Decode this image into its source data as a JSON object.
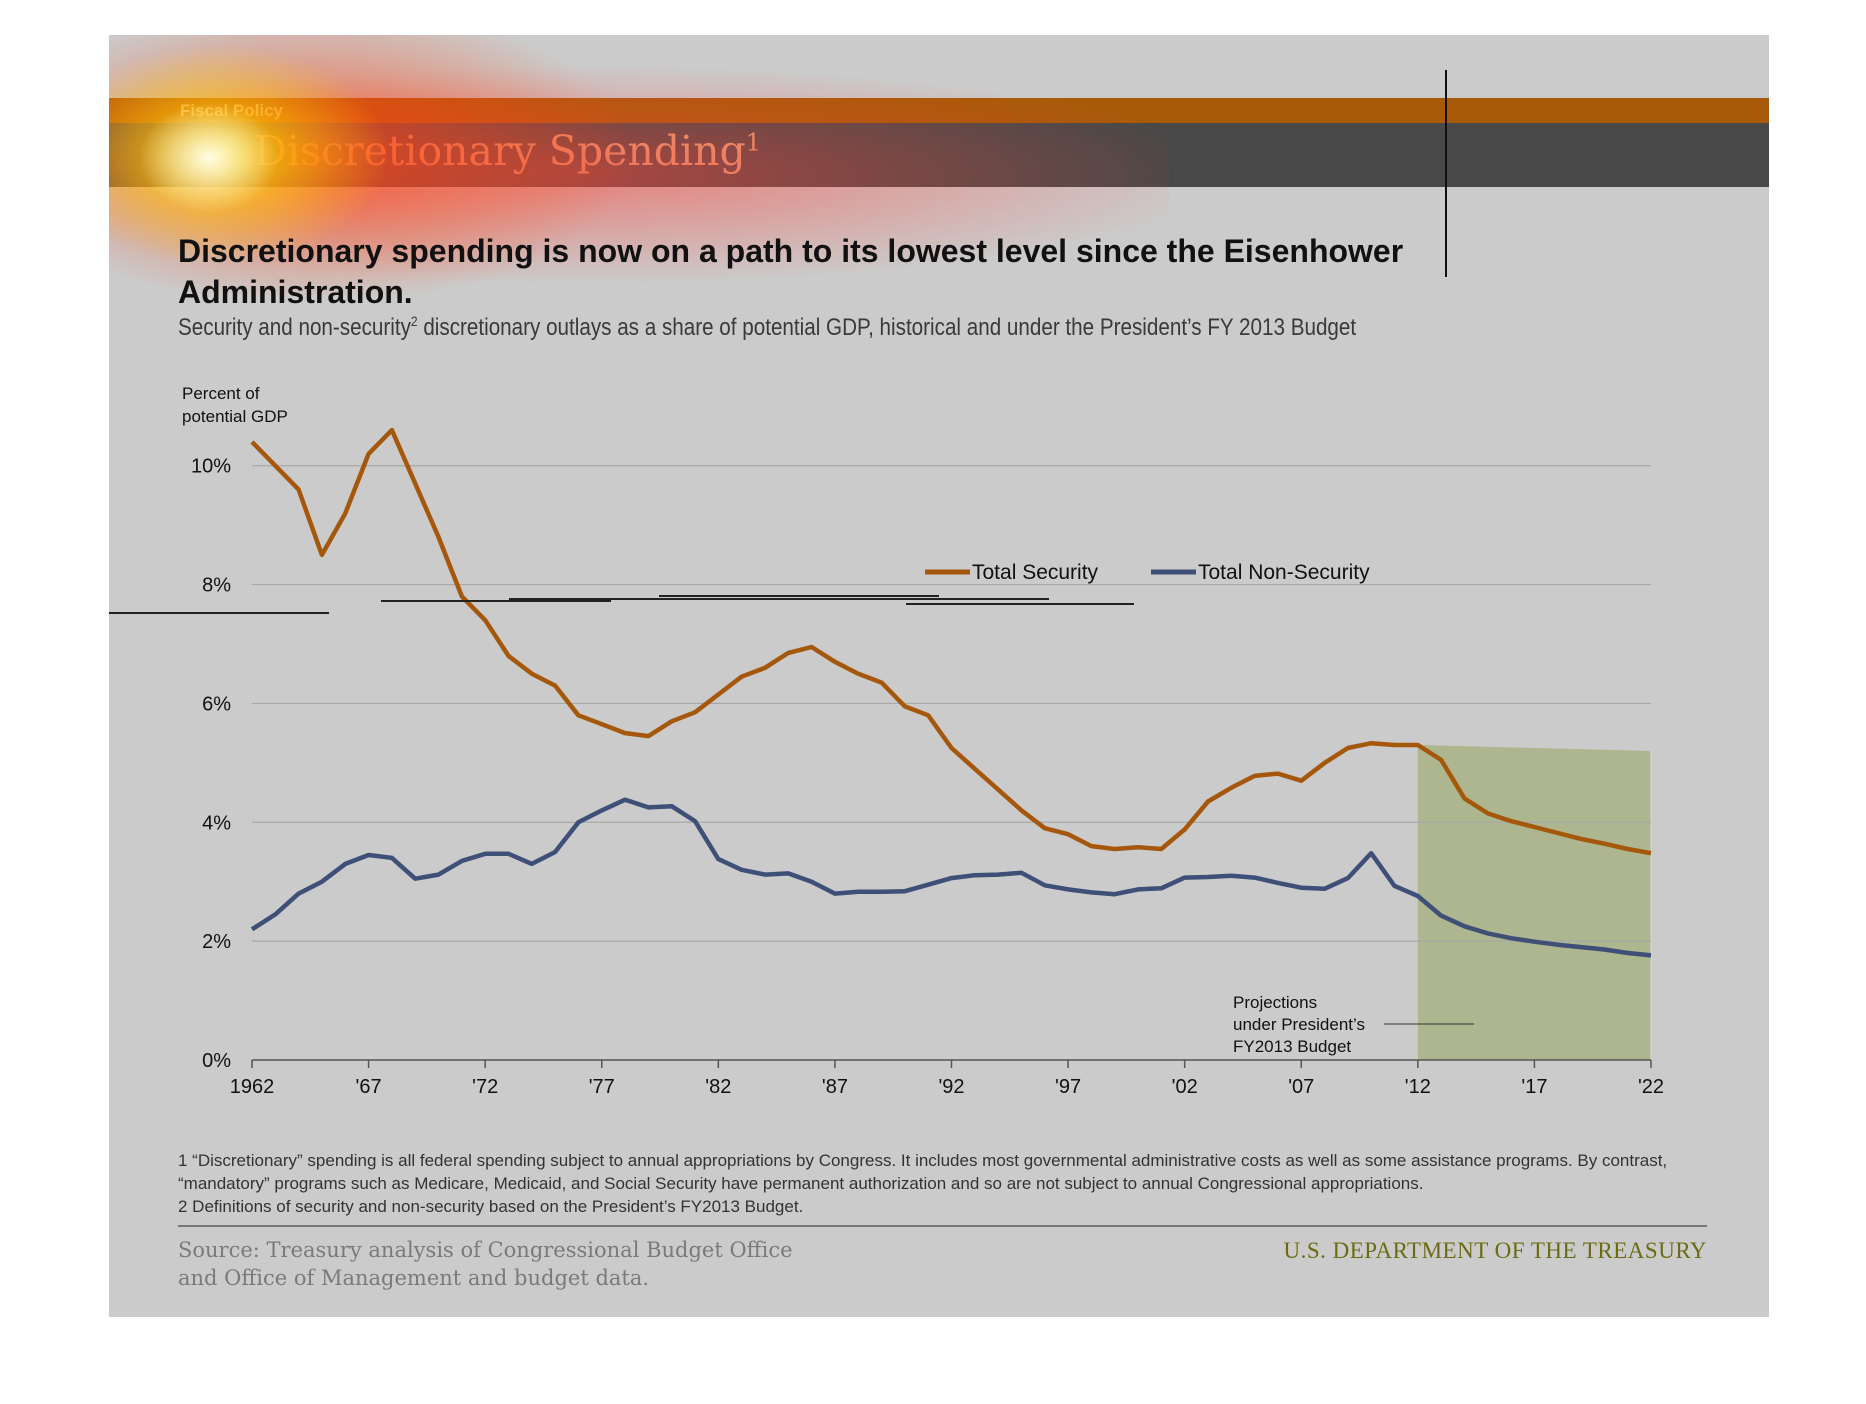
{
  "header": {
    "section": "Fiscal Policy",
    "title": "Discretionary Spending",
    "title_superscript": "1"
  },
  "headline": "Discretionary spending is now on a path to its lowest level since the Eisenhower Administration.",
  "subtitle": {
    "before": "Security and non-security",
    "superscript": "2",
    "after": " discretionary outlays as a share of potential GDP, historical and under the President’s FY 2013 Budget"
  },
  "chart_data": {
    "type": "line",
    "ylabel_line1": "Percent of",
    "ylabel_line2": "potential GDP",
    "ylim": [
      0,
      10.5
    ],
    "yticks": [
      0,
      2,
      4,
      6,
      8,
      10
    ],
    "ytick_labels": [
      "0%",
      "2%",
      "4%",
      "6%",
      "8%",
      "10%"
    ],
    "xlim": [
      1962,
      2022
    ],
    "xticks": [
      1962,
      1967,
      1972,
      1977,
      1982,
      1987,
      1992,
      1997,
      2002,
      2007,
      2012,
      2017,
      2022
    ],
    "xtick_labels": [
      "1962",
      "'67",
      "'72",
      "'77",
      "'82",
      "'87",
      "'92",
      "'97",
      "'02",
      "'07",
      "'12",
      "'17",
      "'22"
    ],
    "grid": "horizontal",
    "legend_position": "top-right",
    "projection_start": 2012,
    "projection_label": [
      "Projections",
      "under President’s",
      "FY2013 Budget"
    ],
    "x": [
      1962,
      1963,
      1964,
      1965,
      1966,
      1967,
      1968,
      1969,
      1970,
      1971,
      1972,
      1973,
      1974,
      1975,
      1976,
      1977,
      1978,
      1979,
      1980,
      1981,
      1982,
      1983,
      1984,
      1985,
      1986,
      1987,
      1988,
      1989,
      1990,
      1991,
      1992,
      1993,
      1994,
      1995,
      1996,
      1997,
      1998,
      1999,
      2000,
      2001,
      2002,
      2003,
      2004,
      2005,
      2006,
      2007,
      2008,
      2009,
      2010,
      2011,
      2012,
      2013,
      2014,
      2015,
      2016,
      2017,
      2018,
      2019,
      2020,
      2021,
      2022
    ],
    "series": [
      {
        "name": "Total Security",
        "color": "#a5580b",
        "values": [
          10.4,
          10.0,
          9.6,
          8.5,
          9.2,
          10.2,
          10.6,
          9.7,
          8.8,
          7.8,
          7.4,
          6.8,
          6.5,
          6.3,
          5.8,
          5.65,
          5.5,
          5.45,
          5.7,
          5.85,
          6.15,
          6.45,
          6.6,
          6.85,
          6.95,
          6.7,
          6.5,
          6.35,
          5.95,
          5.8,
          5.25,
          4.9,
          4.55,
          4.2,
          3.9,
          3.8,
          3.6,
          3.55,
          3.58,
          3.55,
          3.88,
          4.35,
          4.58,
          4.78,
          4.82,
          4.7,
          5.0,
          5.25,
          5.33,
          5.3,
          5.3,
          5.05,
          4.4,
          4.15,
          4.02,
          3.92,
          3.82,
          3.72,
          3.64,
          3.55,
          3.48
        ]
      },
      {
        "name": "Total Non-Security",
        "color": "#3e4f78",
        "values": [
          2.2,
          2.45,
          2.8,
          3.0,
          3.3,
          3.45,
          3.4,
          3.05,
          3.12,
          3.35,
          3.47,
          3.47,
          3.3,
          3.5,
          4.0,
          4.2,
          4.38,
          4.25,
          4.27,
          4.02,
          3.38,
          3.2,
          3.12,
          3.14,
          3.0,
          2.8,
          2.83,
          2.83,
          2.84,
          2.95,
          3.06,
          3.11,
          3.12,
          3.15,
          2.94,
          2.87,
          2.82,
          2.79,
          2.87,
          2.89,
          3.07,
          3.08,
          3.1,
          3.07,
          2.98,
          2.9,
          2.88,
          3.06,
          3.48,
          2.93,
          2.76,
          2.43,
          2.25,
          2.13,
          2.05,
          1.99,
          1.94,
          1.9,
          1.86,
          1.8,
          1.76
        ]
      }
    ]
  },
  "footnotes": [
    "1 “Discretionary” spending is all federal spending subject to annual appropriations by Congress. It includes most governmental administrative costs as well as some assistance programs. By contrast, “mandatory” programs such as Medicare, Medicaid, and Social Security have permanent authorization and so are not subject to annual Congressional appropriations.",
    "2 Definitions of security and non-security based on the President’s FY2013 Budget."
  ],
  "source": "Source: Treasury analysis of Congressional Budget Office\nand Office of Management and budget data.",
  "agency": "U.S. DEPARTMENT OF THE TREASURY",
  "colors": {
    "background": "#cbcbcb",
    "accent_orange": "#a85a09",
    "header_dark": "#484848",
    "projection_fill": "#adb68e",
    "treasury_text": "#6b6b12"
  }
}
